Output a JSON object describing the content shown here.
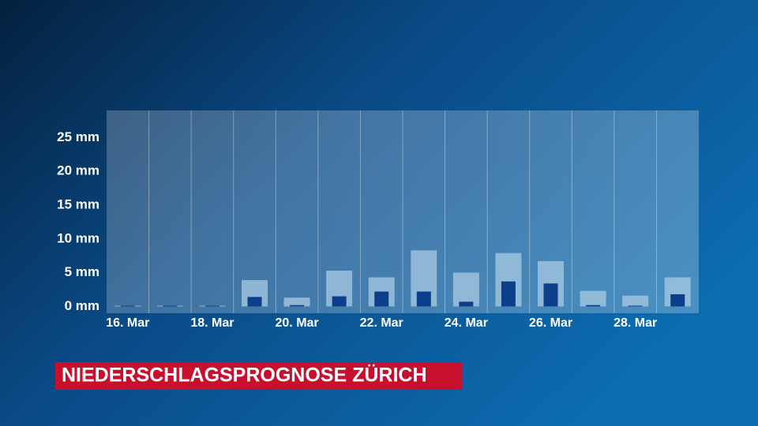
{
  "chart_data": {
    "type": "bar",
    "title": "NIEDERSCHLAGSPROGNOSE ZÜRICH",
    "categories": [
      "16. Mar",
      null,
      "18. Mar",
      null,
      "20. Mar",
      null,
      "22. Mar",
      null,
      "24. Mar",
      null,
      "26. Mar",
      null,
      "28. Mar",
      null
    ],
    "series": [
      {
        "color": "#a9c9e3",
        "values": [
          0,
          0,
          0,
          3.9,
          1.3,
          5.3,
          4.3,
          8.3,
          5.0,
          7.9,
          6.7,
          2.3,
          1.6,
          4.3
        ]
      },
      {
        "color": "#0b3f8c",
        "values": [
          0,
          0,
          0,
          1.4,
          0.2,
          1.5,
          2.2,
          2.2,
          0.7,
          3.7,
          3.4,
          0.2,
          0,
          1.8
        ]
      }
    ],
    "ylim": [
      -1,
      29
    ],
    "yticks": [
      {
        "value": 0,
        "label": "0 mm"
      },
      {
        "value": 5,
        "label": "5 mm"
      },
      {
        "value": 10,
        "label": "10 mm"
      },
      {
        "value": 15,
        "label": "15 mm"
      },
      {
        "value": 20,
        "label": "20 mm"
      },
      {
        "value": 25,
        "label": "25 mm"
      }
    ],
    "grid": true,
    "title_color": "#c8102e"
  }
}
